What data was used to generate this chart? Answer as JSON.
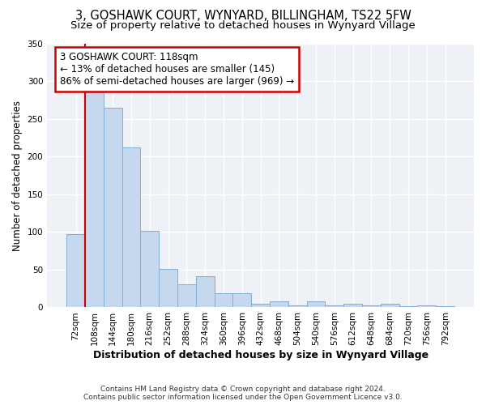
{
  "title_line1": "3, GOSHAWK COURT, WYNYARD, BILLINGHAM, TS22 5FW",
  "title_line2": "Size of property relative to detached houses in Wynyard Village",
  "xlabel": "Distribution of detached houses by size in Wynyard Village",
  "ylabel": "Number of detached properties",
  "categories": [
    "72sqm",
    "108sqm",
    "144sqm",
    "180sqm",
    "216sqm",
    "252sqm",
    "288sqm",
    "324sqm",
    "360sqm",
    "396sqm",
    "432sqm",
    "468sqm",
    "504sqm",
    "540sqm",
    "576sqm",
    "612sqm",
    "648sqm",
    "684sqm",
    "720sqm",
    "756sqm",
    "792sqm"
  ],
  "values": [
    97,
    288,
    265,
    212,
    102,
    51,
    31,
    41,
    19,
    19,
    5,
    8,
    3,
    8,
    3,
    5,
    3,
    5,
    2,
    3,
    2
  ],
  "bar_color": "#c5d8ed",
  "bar_edge_color": "#7fafd4",
  "annotation_box_text_line1": "3 GOSHAWK COURT: 118sqm",
  "annotation_box_text_line2": "← 13% of detached houses are smaller (145)",
  "annotation_box_text_line3": "86% of semi-detached houses are larger (969) →",
  "annotation_box_color": "#ffffff",
  "annotation_box_edge_color": "#cc0000",
  "vline_color": "#cc0000",
  "vline_x_index": 1,
  "ylim": [
    0,
    350
  ],
  "yticks": [
    0,
    50,
    100,
    150,
    200,
    250,
    300,
    350
  ],
  "plot_bg_color": "#eef2f7",
  "grid_color": "#ffffff",
  "fig_bg_color": "#ffffff",
  "footnote1": "Contains HM Land Registry data © Crown copyright and database right 2024.",
  "footnote2": "Contains public sector information licensed under the Open Government Licence v3.0.",
  "title1_fontsize": 10.5,
  "title2_fontsize": 9.5,
  "xlabel_fontsize": 9,
  "ylabel_fontsize": 8.5,
  "tick_fontsize": 7.5,
  "footnote_fontsize": 6.5,
  "annot_fontsize": 8.5
}
